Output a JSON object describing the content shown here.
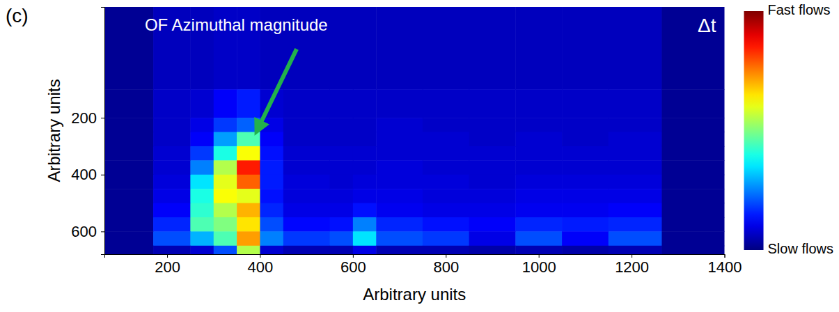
{
  "chart_data": {
    "type": "heatmap",
    "panel_label": "(c)",
    "annotations": [
      "OF Azimuthal magnitude",
      "Δt"
    ],
    "x_label": "Arbitrary units",
    "y_label": "Arbitrary units",
    "xlim": [
      65,
      1400
    ],
    "xticks": [
      200,
      400,
      600,
      800,
      1000,
      1200,
      1400
    ],
    "ylim": [
      680,
      -190
    ],
    "yticks": [
      200,
      400,
      600
    ],
    "tick_labels": true,
    "x_bins": [
      65,
      170,
      250,
      300,
      350,
      400,
      450,
      550,
      600,
      650,
      750,
      850,
      950,
      1050,
      1150,
      1265,
      1400
    ],
    "y_bins": [
      -190,
      100,
      200,
      250,
      300,
      350,
      400,
      450,
      500,
      550,
      600,
      650,
      680
    ],
    "cells": [
      [
        0.02,
        0.06,
        0.06,
        0.07,
        0.07,
        0.06,
        0.06,
        0.06,
        0.06,
        0.06,
        0.06,
        0.06,
        0.06,
        0.06,
        0.06,
        0.02
      ],
      [
        0.02,
        0.07,
        0.08,
        0.12,
        0.15,
        0.08,
        0.07,
        0.07,
        0.07,
        0.07,
        0.07,
        0.07,
        0.07,
        0.07,
        0.07,
        0.02
      ],
      [
        0.02,
        0.07,
        0.1,
        0.18,
        0.22,
        0.1,
        0.07,
        0.07,
        0.07,
        0.08,
        0.07,
        0.07,
        0.07,
        0.07,
        0.07,
        0.02
      ],
      [
        0.02,
        0.07,
        0.12,
        0.28,
        0.45,
        0.12,
        0.07,
        0.07,
        0.07,
        0.08,
        0.08,
        0.07,
        0.08,
        0.07,
        0.08,
        0.02
      ],
      [
        0.02,
        0.08,
        0.18,
        0.4,
        0.62,
        0.14,
        0.08,
        0.08,
        0.08,
        0.08,
        0.08,
        0.08,
        0.08,
        0.08,
        0.08,
        0.02
      ],
      [
        0.02,
        0.08,
        0.25,
        0.55,
        0.85,
        0.15,
        0.08,
        0.08,
        0.08,
        0.09,
        0.08,
        0.08,
        0.08,
        0.08,
        0.08,
        0.02
      ],
      [
        0.02,
        0.09,
        0.35,
        0.6,
        0.78,
        0.15,
        0.09,
        0.08,
        0.09,
        0.09,
        0.09,
        0.08,
        0.09,
        0.09,
        0.09,
        0.02
      ],
      [
        0.02,
        0.1,
        0.4,
        0.62,
        0.6,
        0.14,
        0.09,
        0.09,
        0.1,
        0.1,
        0.09,
        0.09,
        0.1,
        0.1,
        0.1,
        0.02
      ],
      [
        0.02,
        0.12,
        0.42,
        0.55,
        0.7,
        0.16,
        0.1,
        0.1,
        0.14,
        0.11,
        0.1,
        0.1,
        0.11,
        0.11,
        0.12,
        0.02
      ],
      [
        0.02,
        0.16,
        0.45,
        0.5,
        0.65,
        0.2,
        0.13,
        0.14,
        0.25,
        0.16,
        0.14,
        0.12,
        0.16,
        0.15,
        0.16,
        0.02
      ],
      [
        0.02,
        0.2,
        0.3,
        0.45,
        0.72,
        0.25,
        0.18,
        0.2,
        0.35,
        0.2,
        0.18,
        0.1,
        0.2,
        0.12,
        0.2,
        0.02
      ],
      [
        0.02,
        0.05,
        0.08,
        0.2,
        0.55,
        0.08,
        0.05,
        0.05,
        0.1,
        0.05,
        0.05,
        0.04,
        0.05,
        0.04,
        0.05,
        0.02
      ]
    ],
    "colorbar_range": [
      0,
      1
    ],
    "colorbar_ticks": [
      {
        "value": 1,
        "label": "Fast flows"
      },
      {
        "value": 0,
        "label": "Slow flows"
      }
    ]
  }
}
